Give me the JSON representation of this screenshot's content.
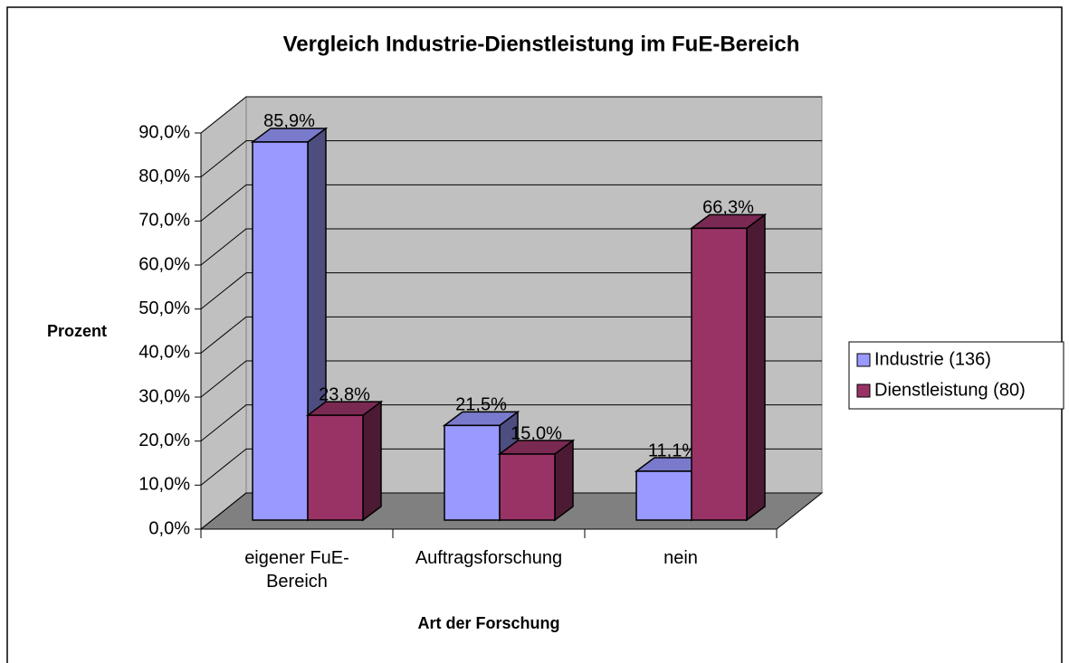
{
  "chart_data": {
    "type": "bar3d",
    "title": "Vergleich Industrie-Dienstleistung im FuE-Bereich",
    "x_label": "Art der Forschung",
    "y_label": "Prozent",
    "categories": [
      "eigener FuE-Bereich",
      "Auftragsforschung",
      "nein"
    ],
    "series": [
      {
        "name": "Industrie (136)",
        "color": "#9999ff",
        "values": [
          85.9,
          21.5,
          11.1
        ],
        "value_labels": [
          "85,9%",
          "21,5%",
          "11,1%"
        ]
      },
      {
        "name": "Dienstleistung (80)",
        "color": "#993366",
        "values": [
          23.8,
          15.0,
          66.3
        ],
        "value_labels": [
          "23,8%",
          "15,0%",
          "66,3%"
        ]
      }
    ],
    "ylim": [
      0,
      90
    ],
    "yticks": [
      {
        "value": 0,
        "label": "0,0%"
      },
      {
        "value": 10,
        "label": "10,0%"
      },
      {
        "value": 20,
        "label": "20,0%"
      },
      {
        "value": 30,
        "label": "30,0%"
      },
      {
        "value": 40,
        "label": "40,0%"
      },
      {
        "value": 50,
        "label": "50,0%"
      },
      {
        "value": 60,
        "label": "60,0%"
      },
      {
        "value": 70,
        "label": "70,0%"
      },
      {
        "value": 80,
        "label": "80,0%"
      },
      {
        "value": 90,
        "label": "90,0%"
      }
    ],
    "grid": true,
    "legend": "right"
  }
}
